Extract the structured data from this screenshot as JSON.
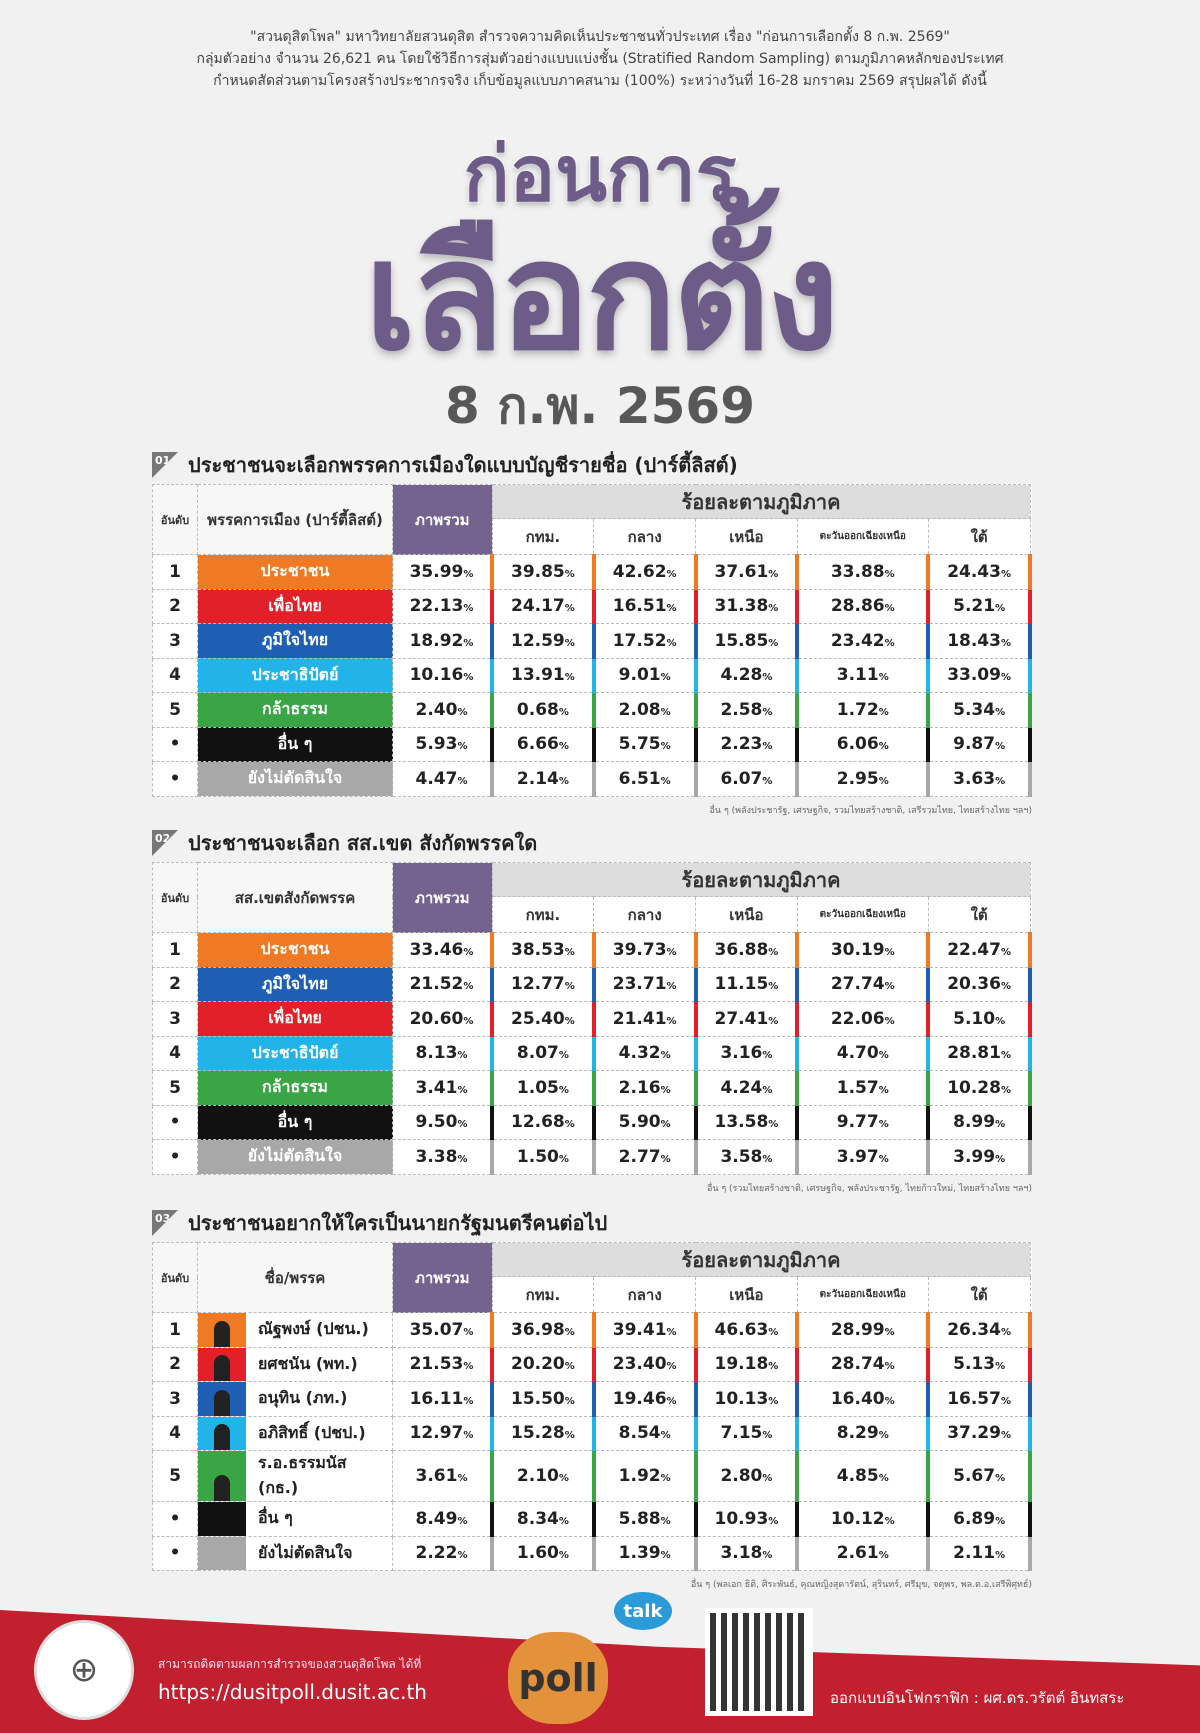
{
  "intro": [
    "\"สวนดุสิตโพล\" มหาวิทยาลัยสวนดุสิต สำรวจความคิดเห็นประชาชนทั่วประเทศ เรื่อง \"ก่อนการเลือกตั้ง 8 ก.พ. 2569\"",
    "กลุ่มตัวอย่าง จำนวน 26,621 คน โดยใช้วิธีการสุ่มตัวอย่างแบบแบ่งชั้น (Stratified Random Sampling) ตามภูมิภาคหลักของประเทศ",
    "กำหนดสัดส่วนตามโครงสร้างประชากรจริง เก็บข้อมูลแบบภาคสนาม (100%) ระหว่างวันที่ 16-28 มกราคม 2569 สรุปผลได้ ดังนี้"
  ],
  "title": {
    "line1": "ก่อนการ",
    "line2": "เลือกตั้ง",
    "date": "8 ก.พ. 2569"
  },
  "headers": {
    "rank": "อันดับ",
    "overall": "ภาพรวม",
    "regional": "ร้อยละตามภูมิภาค",
    "regions": [
      "กทม.",
      "กลาง",
      "เหนือ",
      "ตะวันออกเฉียงเหนือ",
      "ใต้"
    ],
    "pct": "%"
  },
  "colors": {
    "orange": "#f07a23",
    "red": "#e2202a",
    "blue": "#1e5fb4",
    "lightblue": "#22b3e8",
    "green": "#3aa545",
    "black": "#111111",
    "grey": "#a8a8a8",
    "purple": "#6e5c88"
  },
  "sections": [
    {
      "num": "01",
      "title": "ประชาชนจะเลือกพรรคการเมืองใดแบบบัญชีรายชื่อ (ปาร์ตี้ลิสต์)",
      "col_label": "พรรคการเมือง (ปาร์ตี้ลิสต์)",
      "rows": [
        {
          "rank": "1",
          "name": "ประชาชน",
          "color": "#f07a23",
          "values": [
            "35.99",
            "39.85",
            "42.62",
            "37.61",
            "33.88",
            "24.43"
          ]
        },
        {
          "rank": "2",
          "name": "เพื่อไทย",
          "color": "#e2202a",
          "values": [
            "22.13",
            "24.17",
            "16.51",
            "31.38",
            "28.86",
            "5.21"
          ]
        },
        {
          "rank": "3",
          "name": "ภูมิใจไทย",
          "color": "#1e5fb4",
          "values": [
            "18.92",
            "12.59",
            "17.52",
            "15.85",
            "23.42",
            "18.43"
          ]
        },
        {
          "rank": "4",
          "name": "ประชาธิปัตย์",
          "color": "#22b3e8",
          "values": [
            "10.16",
            "13.91",
            "9.01",
            "4.28",
            "3.11",
            "33.09"
          ]
        },
        {
          "rank": "5",
          "name": "กล้าธรรม",
          "color": "#3aa545",
          "values": [
            "2.40",
            "0.68",
            "2.08",
            "2.58",
            "1.72",
            "5.34"
          ]
        },
        {
          "rank": "•",
          "name": "อื่น ๆ",
          "color": "#111111",
          "values": [
            "5.93",
            "6.66",
            "5.75",
            "2.23",
            "6.06",
            "9.87"
          ]
        },
        {
          "rank": "•",
          "name": "ยังไม่ตัดสินใจ",
          "color": "#a8a8a8",
          "values": [
            "4.47",
            "2.14",
            "6.51",
            "6.07",
            "2.95",
            "3.63"
          ]
        }
      ],
      "footnote": "อื่น ๆ (พลังประชารัฐ, เศรษฐกิจ, รวมไทยสร้างชาติ, เสรีรวมไทย, ไทยสร้างไทย ฯลฯ)"
    },
    {
      "num": "02",
      "title": "ประชาชนจะเลือก สส.เขต สังกัดพรรคใด",
      "col_label": "สส.เขตสังกัดพรรค",
      "rows": [
        {
          "rank": "1",
          "name": "ประชาชน",
          "color": "#f07a23",
          "values": [
            "33.46",
            "38.53",
            "39.73",
            "36.88",
            "30.19",
            "22.47"
          ]
        },
        {
          "rank": "2",
          "name": "ภูมิใจไทย",
          "color": "#1e5fb4",
          "values": [
            "21.52",
            "12.77",
            "23.71",
            "11.15",
            "27.74",
            "20.36"
          ]
        },
        {
          "rank": "3",
          "name": "เพื่อไทย",
          "color": "#e2202a",
          "values": [
            "20.60",
            "25.40",
            "21.41",
            "27.41",
            "22.06",
            "5.10"
          ]
        },
        {
          "rank": "4",
          "name": "ประชาธิปัตย์",
          "color": "#22b3e8",
          "values": [
            "8.13",
            "8.07",
            "4.32",
            "3.16",
            "4.70",
            "28.81"
          ]
        },
        {
          "rank": "5",
          "name": "กล้าธรรม",
          "color": "#3aa545",
          "values": [
            "3.41",
            "1.05",
            "2.16",
            "4.24",
            "1.57",
            "10.28"
          ]
        },
        {
          "rank": "•",
          "name": "อื่น ๆ",
          "color": "#111111",
          "values": [
            "9.50",
            "12.68",
            "5.90",
            "13.58",
            "9.77",
            "8.99"
          ]
        },
        {
          "rank": "•",
          "name": "ยังไม่ตัดสินใจ",
          "color": "#a8a8a8",
          "values": [
            "3.38",
            "1.50",
            "2.77",
            "3.58",
            "3.97",
            "3.99"
          ]
        }
      ],
      "footnote": "อื่น ๆ (รวมไทยสร้างชาติ, เศรษฐกิจ, พลังประชารัฐ, ไทยก้าวใหม่, ไทยสร้างไทย ฯลฯ)"
    },
    {
      "num": "03",
      "title": "ประชาชนอยากให้ใครเป็นนายกรัฐมนตรีคนต่อไป",
      "col_label": "ชื่อ/พรรค",
      "photos": true,
      "rows": [
        {
          "rank": "1",
          "name": "ณัฐพงษ์ (ปชน.)",
          "color": "#f07a23",
          "values": [
            "35.07",
            "36.98",
            "39.41",
            "46.63",
            "28.99",
            "26.34"
          ]
        },
        {
          "rank": "2",
          "name": "ยศชนัน (พท.)",
          "color": "#e2202a",
          "values": [
            "21.53",
            "20.20",
            "23.40",
            "19.18",
            "28.74",
            "5.13"
          ]
        },
        {
          "rank": "3",
          "name": "อนุทิน (ภท.)",
          "color": "#1e5fb4",
          "values": [
            "16.11",
            "15.50",
            "19.46",
            "10.13",
            "16.40",
            "16.57"
          ]
        },
        {
          "rank": "4",
          "name": "อภิสิทธิ์ (ปชป.)",
          "color": "#22b3e8",
          "values": [
            "12.97",
            "15.28",
            "8.54",
            "7.15",
            "8.29",
            "37.29"
          ]
        },
        {
          "rank": "5",
          "name": "ร.อ.ธรรมนัส (กธ.)",
          "color": "#3aa545",
          "values": [
            "3.61",
            "2.10",
            "1.92",
            "2.80",
            "4.85",
            "5.67"
          ]
        },
        {
          "rank": "•",
          "name": "อื่น ๆ",
          "color": "#111111",
          "values": [
            "8.49",
            "8.34",
            "5.88",
            "10.93",
            "10.12",
            "6.89"
          ]
        },
        {
          "rank": "•",
          "name": "ยังไม่ตัดสินใจ",
          "color": "#a8a8a8",
          "values": [
            "2.22",
            "1.60",
            "1.39",
            "3.18",
            "2.61",
            "2.11"
          ]
        }
      ],
      "footnote": "อื่น ๆ (พลเอก ธิติ, ศิระพันธ์, คุณหญิงสุดารัตน์, สุรินทร์, ศรีมุข, จตุพร, พล.ต.อ.เสรีพิศุทธ์)"
    }
  ],
  "footer": {
    "follow_text": "สามารถติดตามผลการสำรวจของสวนดุสิตโพล ได้ที่",
    "url": "https://dusitpoll.dusit.ac.th",
    "poll_logo": "poll",
    "talk_logo": "talk",
    "credit": "ออกแบบอินโฟกราฟิก : ผศ.ดร.วรัตต์ อินทสระ"
  }
}
